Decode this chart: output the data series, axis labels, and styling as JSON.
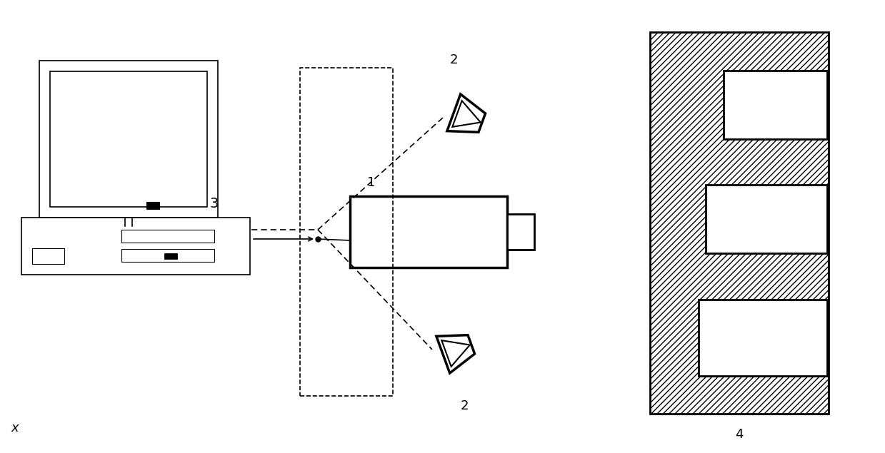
{
  "bg_color": "#ffffff",
  "label_1": "1",
  "label_2": "2",
  "label_3": "3",
  "label_4": "4",
  "label_x": "x",
  "figsize": [
    12.39,
    6.35
  ],
  "dpi": 100
}
